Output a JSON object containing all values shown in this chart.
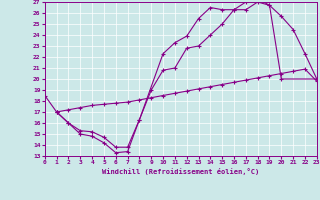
{
  "xlabel": "Windchill (Refroidissement éolien,°C)",
  "bg_color": "#cce8e8",
  "line_color": "#880088",
  "xlim": [
    0,
    23
  ],
  "ylim": [
    13,
    27
  ],
  "xticks": [
    0,
    1,
    2,
    3,
    4,
    5,
    6,
    7,
    8,
    9,
    10,
    11,
    12,
    13,
    14,
    15,
    16,
    17,
    18,
    19,
    20,
    21,
    22,
    23
  ],
  "yticks": [
    13,
    14,
    15,
    16,
    17,
    18,
    19,
    20,
    21,
    22,
    23,
    24,
    25,
    26,
    27
  ],
  "line1_x": [
    0,
    1,
    2,
    3,
    4,
    5,
    6,
    7,
    8,
    9,
    10,
    11,
    12,
    13,
    14,
    15,
    16,
    17,
    18,
    19,
    20,
    21,
    22,
    23
  ],
  "line1_y": [
    18.5,
    17.0,
    16.0,
    15.0,
    14.8,
    14.2,
    13.3,
    13.4,
    16.3,
    19.0,
    20.8,
    21.0,
    22.8,
    23.0,
    24.0,
    25.0,
    26.3,
    26.3,
    27.0,
    26.7,
    25.7,
    24.5,
    22.3,
    20.0
  ],
  "line2_x": [
    1,
    2,
    3,
    4,
    5,
    6,
    7,
    8,
    10,
    11,
    12,
    13,
    14,
    15,
    16,
    17,
    18,
    19,
    20,
    23
  ],
  "line2_y": [
    17.0,
    16.0,
    15.3,
    15.2,
    14.7,
    13.8,
    13.8,
    16.3,
    22.3,
    23.3,
    23.9,
    25.5,
    26.5,
    26.3,
    26.3,
    27.0,
    27.3,
    26.7,
    20.0,
    20.0
  ],
  "line3_x": [
    1,
    2,
    3,
    4,
    5,
    6,
    7,
    8,
    9,
    10,
    11,
    12,
    13,
    14,
    15,
    16,
    17,
    18,
    19,
    20,
    21,
    22,
    23
  ],
  "line3_y": [
    17.0,
    17.2,
    17.4,
    17.6,
    17.7,
    17.8,
    17.9,
    18.1,
    18.3,
    18.5,
    18.7,
    18.9,
    19.1,
    19.3,
    19.5,
    19.7,
    19.9,
    20.1,
    20.3,
    20.5,
    20.7,
    20.9,
    19.8
  ]
}
